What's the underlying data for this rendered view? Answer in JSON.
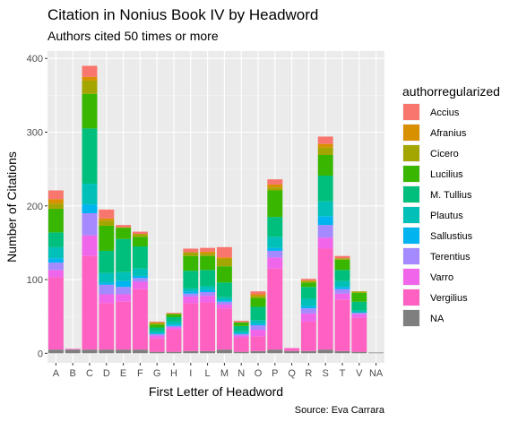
{
  "chart_data": {
    "type": "bar",
    "stacked": true,
    "title": "Citation in Nonius Book IV by Headword",
    "subtitle": "Authors cited 50 times or more",
    "caption": "Source: Eva Carrara",
    "xlabel": "First Letter of Headword",
    "ylabel": "Number of Citations",
    "ylim": [
      0,
      410
    ],
    "yticks": [
      0,
      100,
      200,
      300,
      400
    ],
    "grid": true,
    "legend_position": "right",
    "legend_title": "authorregularized",
    "categories": [
      "A",
      "B",
      "C",
      "D",
      "E",
      "F",
      "G",
      "H",
      "I",
      "L",
      "M",
      "N",
      "O",
      "P",
      "Q",
      "R",
      "S",
      "T",
      "V",
      "NA"
    ],
    "series": [
      {
        "name": "NA",
        "color": "#7f7f7f",
        "values": [
          5,
          5,
          5,
          5,
          5,
          5,
          2,
          2,
          3,
          3,
          5,
          2,
          3,
          5,
          3,
          3,
          5,
          3,
          2,
          1
        ]
      },
      {
        "name": "Vergilius",
        "color": "#ff61c3",
        "values": [
          98,
          1,
          127,
          63,
          65,
          82,
          18,
          30,
          65,
          66,
          56,
          19,
          20,
          110,
          4,
          40,
          137,
          70,
          46,
          0
        ]
      },
      {
        "name": "Varro",
        "color": "#f066ea",
        "values": [
          10,
          0,
          28,
          12,
          10,
          10,
          4,
          3,
          9,
          9,
          5,
          3,
          9,
          15,
          0,
          11,
          15,
          8,
          5,
          0
        ]
      },
      {
        "name": "Terentius",
        "color": "#a58aff",
        "values": [
          10,
          0,
          30,
          13,
          10,
          5,
          2,
          2,
          4,
          5,
          4,
          2,
          6,
          9,
          0,
          7,
          17,
          6,
          2,
          0
        ]
      },
      {
        "name": "Sallustius",
        "color": "#00b4f0",
        "values": [
          6,
          0,
          12,
          3,
          8,
          3,
          1,
          2,
          3,
          3,
          2,
          1,
          2,
          4,
          0,
          3,
          12,
          3,
          0,
          0
        ]
      },
      {
        "name": "Plautus",
        "color": "#00c0b8",
        "values": [
          15,
          0,
          28,
          13,
          12,
          10,
          3,
          4,
          4,
          5,
          4,
          3,
          5,
          15,
          0,
          10,
          20,
          8,
          3,
          0
        ]
      },
      {
        "name": "M. Tullius",
        "color": "#00bf7d",
        "values": [
          20,
          0,
          75,
          30,
          45,
          30,
          5,
          6,
          24,
          22,
          20,
          7,
          18,
          27,
          0,
          16,
          35,
          15,
          12,
          0
        ]
      },
      {
        "name": "Lucilius",
        "color": "#39b600",
        "values": [
          32,
          0,
          47,
          34,
          15,
          13,
          4,
          4,
          20,
          19,
          22,
          5,
          12,
          36,
          0,
          6,
          28,
          14,
          12,
          0
        ]
      },
      {
        "name": "Cicero",
        "color": "#a3a500",
        "values": [
          7,
          0,
          18,
          7,
          1,
          4,
          2,
          1,
          5,
          3,
          10,
          0,
          3,
          4,
          0,
          2,
          10,
          2,
          2,
          0
        ]
      },
      {
        "name": "Afranius",
        "color": "#d89000",
        "values": [
          6,
          0,
          5,
          3,
          0,
          0,
          1,
          0,
          0,
          3,
          2,
          0,
          2,
          4,
          0,
          1,
          5,
          0,
          0,
          0
        ]
      },
      {
        "name": "Accius",
        "color": "#f8766d",
        "values": [
          12,
          0,
          15,
          12,
          3,
          3,
          1,
          1,
          5,
          5,
          14,
          2,
          4,
          7,
          0,
          2,
          10,
          3,
          0,
          0
        ]
      }
    ]
  }
}
